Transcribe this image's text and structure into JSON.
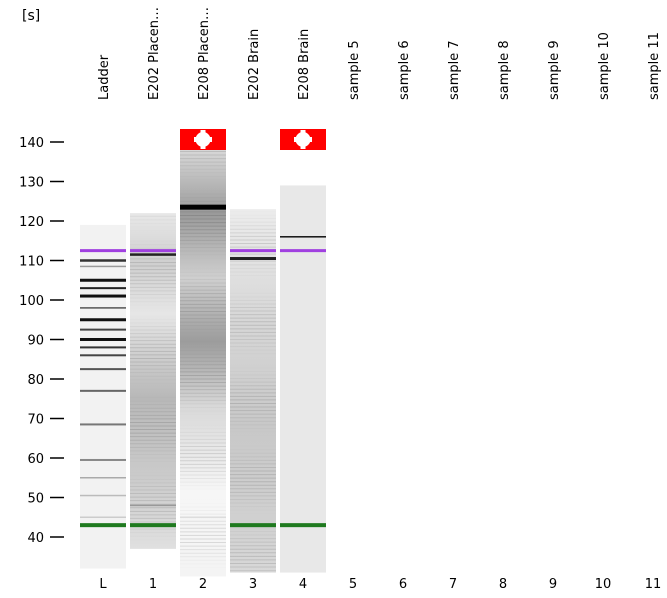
{
  "chart_data": {
    "type": "gel",
    "y_unit_label": "[s]",
    "ylim": [
      30,
      148
    ],
    "y_ticks": [
      40,
      50,
      60,
      70,
      80,
      90,
      100,
      110,
      120,
      130,
      140
    ],
    "lanes": [
      {
        "id": "L",
        "name": "Ladder",
        "background": "#f2f2f2",
        "range": [
          32,
          119
        ],
        "bands": [
          {
            "y": 112.5,
            "color": "#a040e0",
            "w": 3
          },
          {
            "y": 110,
            "color": "#333",
            "w": 2.5
          },
          {
            "y": 108.5,
            "color": "#999",
            "w": 1.5
          },
          {
            "y": 105,
            "color": "#111",
            "w": 3
          },
          {
            "y": 103,
            "color": "#222",
            "w": 2
          },
          {
            "y": 101,
            "color": "#111",
            "w": 3
          },
          {
            "y": 98,
            "color": "#555",
            "w": 1.5
          },
          {
            "y": 95,
            "color": "#111",
            "w": 3
          },
          {
            "y": 92.5,
            "color": "#444",
            "w": 2
          },
          {
            "y": 90,
            "color": "#111",
            "w": 3
          },
          {
            "y": 88,
            "color": "#333",
            "w": 2
          },
          {
            "y": 86,
            "color": "#444",
            "w": 2
          },
          {
            "y": 82.5,
            "color": "#555",
            "w": 2
          },
          {
            "y": 77,
            "color": "#666",
            "w": 2
          },
          {
            "y": 68.5,
            "color": "#777",
            "w": 2
          },
          {
            "y": 59.5,
            "color": "#888",
            "w": 2
          },
          {
            "y": 55,
            "color": "#aaa",
            "w": 1.5
          },
          {
            "y": 50.5,
            "color": "#bbb",
            "w": 1.5
          },
          {
            "y": 45,
            "color": "#ccc",
            "w": 1.5
          },
          {
            "y": 43,
            "color": "#1f7a1f",
            "w": 4
          }
        ]
      },
      {
        "id": "1",
        "name": "E202 Placen…",
        "background": "smear1",
        "range": [
          37,
          122
        ],
        "bands": [
          {
            "y": 112.5,
            "color": "#a040e0",
            "w": 3
          },
          {
            "y": 111.5,
            "color": "#222",
            "w": 2.5
          },
          {
            "y": 48,
            "color": "#999",
            "w": 1.5
          },
          {
            "y": 43,
            "color": "#1f7a1f",
            "w": 4
          }
        ]
      },
      {
        "id": "2",
        "name": "E208 Placen…",
        "background": "smear2",
        "range": [
          30,
          138
        ],
        "flag": true,
        "bands": [
          {
            "y": 123.5,
            "color": "#000",
            "w": 5
          },
          {
            "y": 45,
            "color": "#ddd",
            "w": 1.5
          }
        ]
      },
      {
        "id": "3",
        "name": "E202 Brain",
        "background": "smear3",
        "range": [
          31,
          123
        ],
        "bands": [
          {
            "y": 112.5,
            "color": "#a040e0",
            "w": 3
          },
          {
            "y": 110.5,
            "color": "#222",
            "w": 3
          },
          {
            "y": 43,
            "color": "#1f7a1f",
            "w": 4
          }
        ]
      },
      {
        "id": "4",
        "name": "E208 Brain",
        "background": "#e8e8e8",
        "range": [
          31,
          129
        ],
        "flag": true,
        "bands": [
          {
            "y": 116,
            "color": "#111",
            "w": 1.5
          },
          {
            "y": 112.5,
            "color": "#a040e0",
            "w": 3
          },
          {
            "y": 43,
            "color": "#1f7a1f",
            "w": 4
          }
        ]
      },
      {
        "id": "5",
        "name": "sample 5",
        "background": "none",
        "bands": []
      },
      {
        "id": "6",
        "name": "sample 6",
        "background": "none",
        "bands": []
      },
      {
        "id": "7",
        "name": "sample 7",
        "background": "none",
        "bands": []
      },
      {
        "id": "8",
        "name": "sample 8",
        "background": "none",
        "bands": []
      },
      {
        "id": "9",
        "name": "sample 9",
        "background": "none",
        "bands": []
      },
      {
        "id": "10",
        "name": "sample 10",
        "background": "none",
        "bands": []
      },
      {
        "id": "11",
        "name": "sample 11",
        "background": "none",
        "bands": []
      }
    ],
    "colors": {
      "flag": "#ff0000",
      "marker_upper": "#a040e0",
      "marker_lower": "#1f7a1f"
    }
  }
}
